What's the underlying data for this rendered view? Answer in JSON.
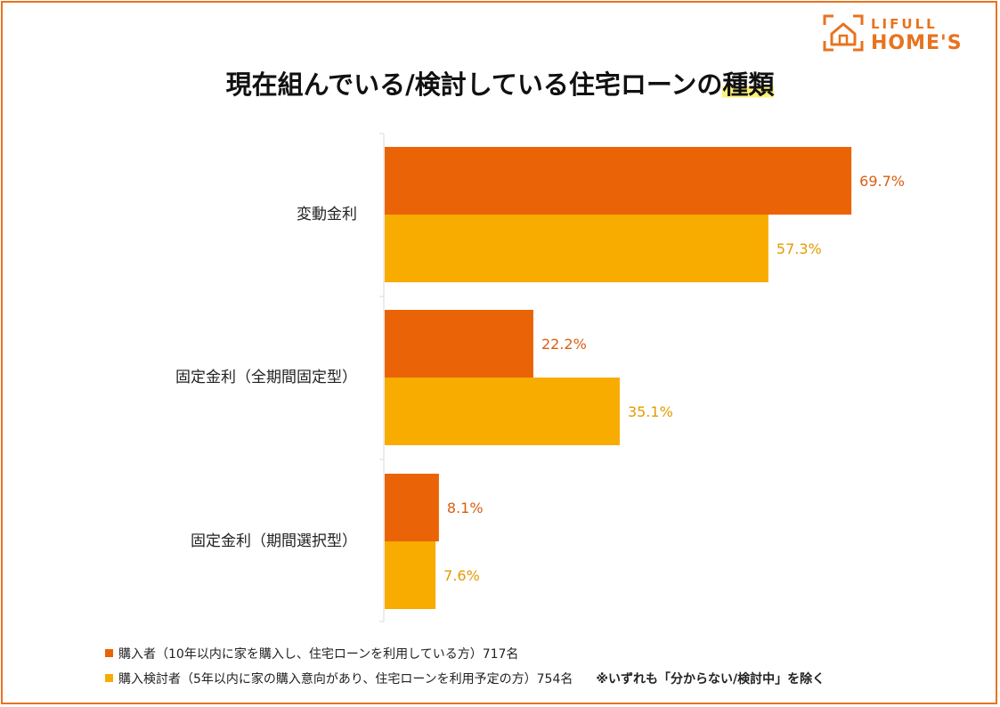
{
  "brand": {
    "name_line1": "LIFULL",
    "name_line2": "HOME'S",
    "color": "#E8731E"
  },
  "chart_data": {
    "type": "bar",
    "orientation": "horizontal",
    "title": "現在組んでいる/検討している住宅ローンの種類",
    "title_plain": "現在組んでいる/検討している住宅ローンの",
    "title_highlight": "種類",
    "categories": [
      "変動金利",
      "固定金利（全期間固定型）",
      "固定金利（期間選択型）"
    ],
    "series": [
      {
        "name": "購入者（10年以内に家を購入し、住宅ローンを利用している方）717名",
        "color": "#EA6407",
        "label_color": "#D85F12",
        "values": [
          69.7,
          22.2,
          8.1
        ]
      },
      {
        "name": "購入検討者（5年以内に家の購入意向があり、住宅ローンを利用予定の方）754名",
        "color": "#F8AC00",
        "label_color": "#E59A00",
        "values": [
          57.3,
          35.1,
          7.6
        ]
      }
    ],
    "value_suffix": "%",
    "xlim": [
      0,
      100
    ],
    "grid": false,
    "legend_position": "bottom-left",
    "note": "※いずれも「分からない/検討中」を除く"
  }
}
